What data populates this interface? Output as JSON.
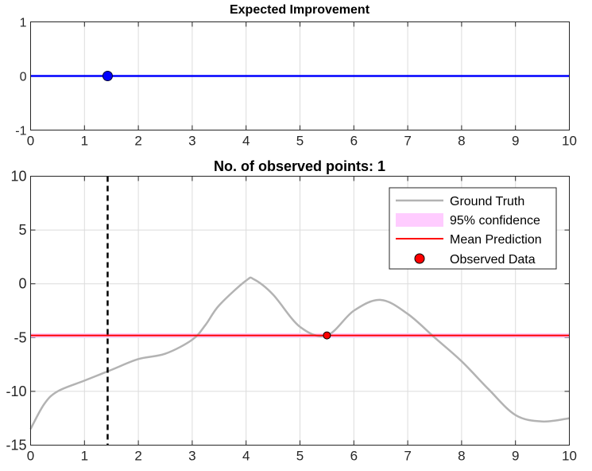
{
  "chart_data": [
    {
      "type": "line",
      "title": "Expected Improvement",
      "xlim": [
        0,
        10
      ],
      "ylim": [
        -1,
        1
      ],
      "xticks": [
        "0",
        "1",
        "2",
        "3",
        "4",
        "5",
        "6",
        "7",
        "8",
        "9",
        "10"
      ],
      "yticks": [
        "1",
        "0",
        "-1"
      ],
      "grid": true,
      "series": [
        {
          "color": "#0000ff",
          "x": [
            0,
            10
          ],
          "y": [
            0,
            0
          ]
        }
      ],
      "marker": {
        "x": 1.43,
        "y": 0,
        "color": "#0000ff"
      }
    },
    {
      "type": "line",
      "title": "No. of observed points: 1",
      "xlim": [
        0,
        10
      ],
      "ylim": [
        -15,
        10
      ],
      "xticks": [
        "0",
        "1",
        "2",
        "3",
        "4",
        "5",
        "6",
        "7",
        "8",
        "9",
        "10"
      ],
      "yticks": [
        "10",
        "5",
        "0",
        "-5",
        "-10",
        "-15"
      ],
      "grid": true,
      "legend_position": "top-right",
      "legend": [
        "Ground Truth",
        "95% confidence",
        "Mean Prediction",
        "Observed Data"
      ],
      "ground_truth": {
        "color": "#b3b3b3",
        "x": [
          0,
          0.25,
          0.5,
          1,
          1.5,
          2,
          2.5,
          3,
          3.25,
          3.5,
          4,
          4.15,
          4.5,
          5,
          5.5,
          6,
          6.5,
          7,
          7.5,
          8,
          8.5,
          9,
          9.5,
          10
        ],
        "y": [
          -13.5,
          -11.2,
          -10.0,
          -9.0,
          -8.0,
          -7.0,
          -6.5,
          -5.2,
          -3.8,
          -2.0,
          0.3,
          0.4,
          -1.0,
          -4.0,
          -4.8,
          -2.5,
          -1.5,
          -2.8,
          -5.0,
          -7.2,
          -9.8,
          -12.2,
          -12.8,
          -12.5
        ]
      },
      "mean_prediction": {
        "color": "#ff0000",
        "x": [
          0,
          10
        ],
        "y": [
          -4.8,
          -4.8
        ]
      },
      "confidence": {
        "color": "#ffccff",
        "lower": -5.0,
        "upper": -4.6
      },
      "observed": {
        "x": [
          5.5
        ],
        "y": [
          -4.8
        ],
        "color": "#ff0000"
      },
      "vline": {
        "x": 1.43,
        "color": "#000000",
        "style": "dashed"
      }
    }
  ]
}
